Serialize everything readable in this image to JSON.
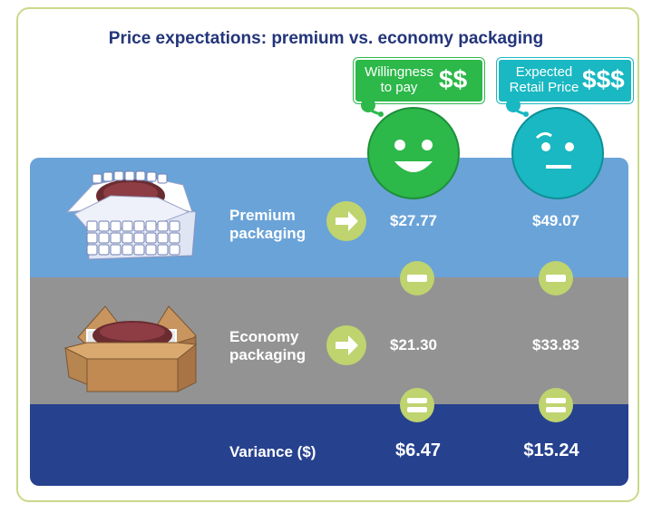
{
  "title": "Price expectations: premium vs. economy packaging",
  "columns": [
    {
      "sign_label": "Willingness to pay",
      "sign_line1": "Willingness",
      "sign_line2": "to pay",
      "symbol": "$$",
      "face": "smile",
      "color": "#2db84a"
    },
    {
      "sign_label": "Expected Retail Price",
      "sign_line1": "Expected",
      "sign_line2": "Retail Price",
      "symbol": "$$$",
      "face": "skeptical",
      "color": "#19b8c2"
    }
  ],
  "rows": [
    {
      "label_line1": "Premium",
      "label_line2": "packaging",
      "willingness": "$27.77",
      "expected": "$49.07"
    },
    {
      "label_line1": "Economy",
      "label_line2": "packaging",
      "willingness": "$21.30",
      "expected": "$33.83"
    }
  ],
  "variance": {
    "label": "Variance ($)",
    "willingness": "$6.47",
    "expected": "$15.24"
  },
  "colors": {
    "title": "#23357a",
    "premium_band": "#6aa3d8",
    "economy_band": "#939393",
    "variance_band": "#26418e",
    "accent_circle": "#bfd36e",
    "frame_border": "#c9d98a"
  },
  "icons": {
    "premium_box": "premium-box-icon",
    "economy_box": "economy-box-icon",
    "arrow": "arrow-right-icon",
    "minus": "minus-icon",
    "equals": "equals-icon"
  }
}
